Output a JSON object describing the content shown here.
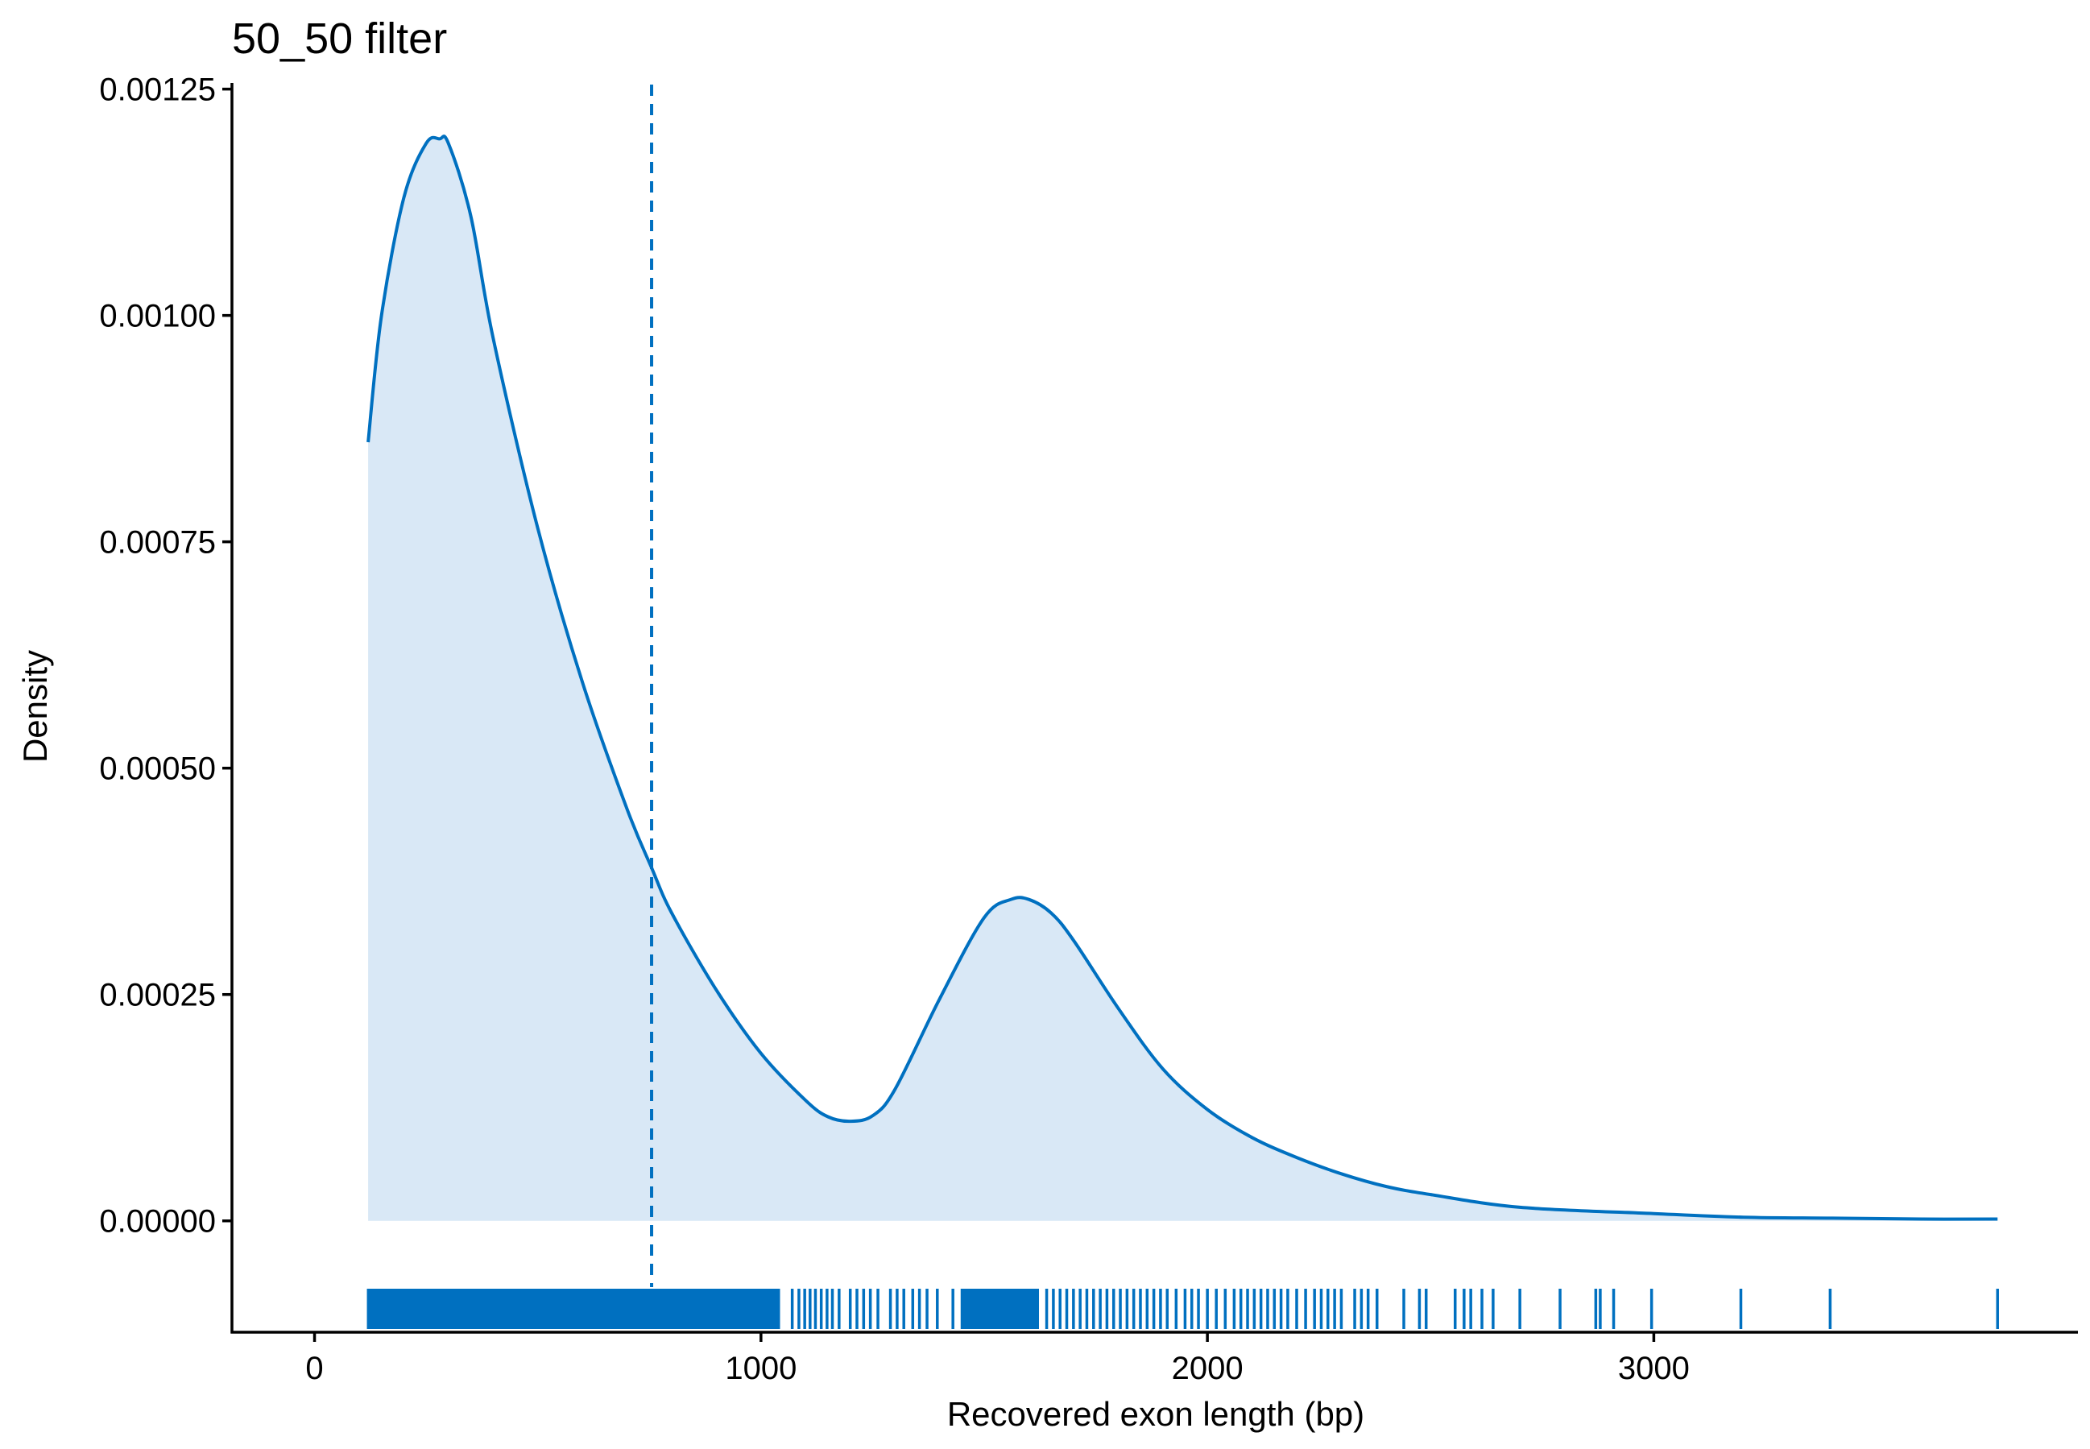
{
  "chart_data": {
    "type": "area",
    "title": "50_50 filter",
    "xlabel": "Recovered exon length (bp)",
    "ylabel": "Density",
    "xlim": [
      -185,
      3950
    ],
    "ylim": [
      -0.000123,
      0.001255
    ],
    "x_ticks": [
      0,
      1000,
      2000,
      3000
    ],
    "x_tick_labels": [
      "0",
      "1000",
      "2000",
      "3000"
    ],
    "y_ticks": [
      0,
      0.00025,
      0.0005,
      0.00075,
      0.001,
      0.00125
    ],
    "y_tick_labels": [
      "0.00000",
      "0.00025",
      "0.00050",
      "0.00075",
      "0.00100",
      "0.00125"
    ],
    "grid": false,
    "legend": "none",
    "colors": {
      "line": "#0070c0",
      "fill": "#d9e8f6",
      "rug": "#0070c0",
      "vline": "#0070c0"
    },
    "vline": {
      "x": 755,
      "style": "dashed"
    },
    "density_curve": {
      "x": [
        120,
        150,
        200,
        250,
        280,
        300,
        350,
        400,
        500,
        600,
        700,
        755,
        800,
        900,
        1000,
        1100,
        1150,
        1200,
        1250,
        1300,
        1400,
        1500,
        1560,
        1600,
        1650,
        1700,
        1800,
        1900,
        2000,
        2100,
        2200,
        2300,
        2400,
        2500,
        2700,
        3000,
        3200,
        3400,
        3600,
        3770
      ],
      "y": [
        0.00086,
        0.001,
        0.00113,
        0.00119,
        0.001195,
        0.00119,
        0.00111,
        0.000975,
        0.000765,
        0.000595,
        0.000455,
        0.00039,
        0.00034,
        0.000255,
        0.000185,
        0.000133,
        0.000115,
        0.00011,
        0.000116,
        0.000145,
        0.000245,
        0.000335,
        0.000355,
        0.000355,
        0.00034,
        0.00031,
        0.000235,
        0.000168,
        0.000123,
        9.2e-05,
        7e-05,
        5.2e-05,
        3.8e-05,
        2.9e-05,
        1.5e-05,
        8e-06,
        4e-06,
        3e-06,
        2e-06,
        2e-06
      ]
    },
    "rug": {
      "dense_ranges": [
        [
          120,
          1040
        ],
        [
          1450,
          1620
        ]
      ],
      "x": [
        1070,
        1085,
        1098,
        1110,
        1122,
        1135,
        1148,
        1160,
        1175,
        1200,
        1215,
        1230,
        1245,
        1262,
        1290,
        1305,
        1320,
        1340,
        1355,
        1372,
        1395,
        1430,
        1640,
        1655,
        1670,
        1685,
        1700,
        1715,
        1730,
        1745,
        1760,
        1775,
        1790,
        1805,
        1820,
        1835,
        1850,
        1865,
        1880,
        1895,
        1910,
        1930,
        1950,
        1965,
        1980,
        2000,
        2020,
        2040,
        2060,
        2075,
        2090,
        2105,
        2120,
        2135,
        2150,
        2165,
        2180,
        2200,
        2220,
        2240,
        2255,
        2270,
        2285,
        2300,
        2330,
        2345,
        2360,
        2380,
        2440,
        2475,
        2490,
        2555,
        2575,
        2590,
        2615,
        2640,
        2700,
        2790,
        2870,
        2880,
        2910,
        2995,
        3195,
        3395,
        3770
      ]
    }
  }
}
